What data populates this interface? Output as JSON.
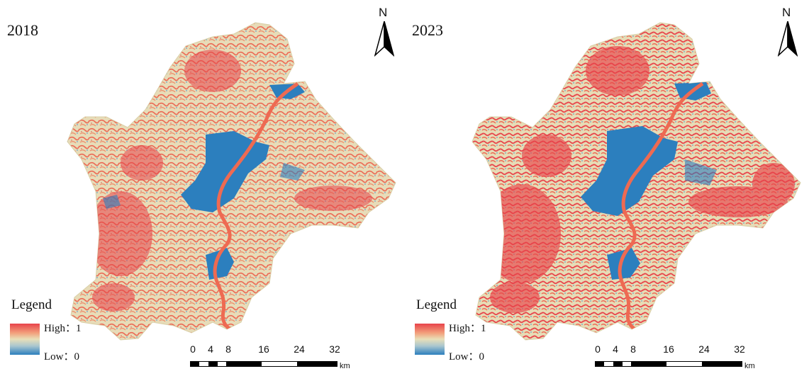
{
  "panels": [
    {
      "year": "2018"
    },
    {
      "year": "2023"
    }
  ],
  "north_label": "N",
  "legend": {
    "title": "Legend",
    "high": "High：1",
    "low": "Low：0"
  },
  "scale": {
    "ticks": [
      "0",
      "4",
      "8",
      "16",
      "24",
      "32"
    ],
    "unit": "km"
  },
  "colors": {
    "high": "#e8434a",
    "mid": "#e9dfb8",
    "low": "#2c7fbe",
    "river": "#ee6a52"
  }
}
